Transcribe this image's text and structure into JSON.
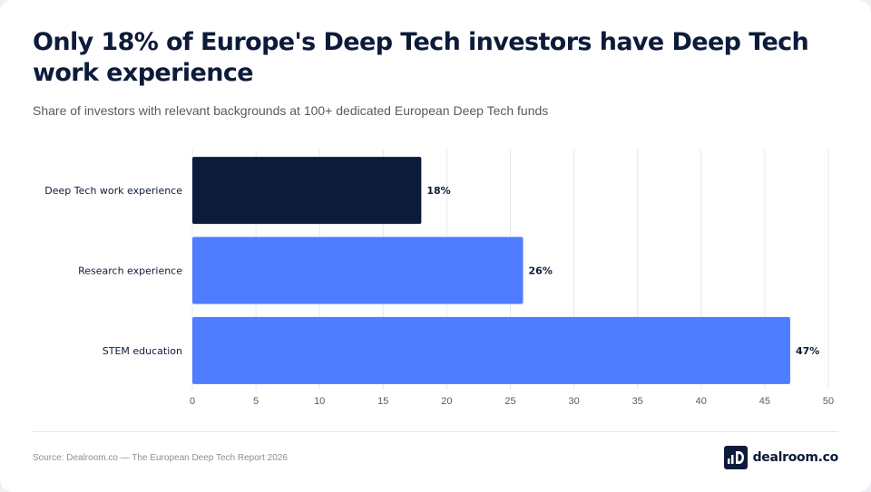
{
  "header": {
    "title": "Only 18% of Europe's Deep Tech investors have Deep Tech work experience",
    "subtitle": "Share of investors with relevant backgrounds at 100+ dedicated European Deep Tech funds"
  },
  "footer": {
    "source": "Source: Dealroom.co — The European Deep Tech Report 2026",
    "brand": "dealroom.co",
    "brand_icon": "dealroom-logo-icon"
  },
  "colors": {
    "highlight": "#0d1b3a",
    "default": "#4f7dff",
    "grid": "#e6e8ec",
    "text": "#0d1b3a"
  },
  "chart_data": {
    "type": "bar",
    "orientation": "horizontal",
    "categories": [
      "Deep Tech work experience",
      "Research experience",
      "STEM education"
    ],
    "values": [
      18,
      26,
      47
    ],
    "value_labels": [
      "18%",
      "26%",
      "47%"
    ],
    "highlight_index": 0,
    "xlim": [
      0,
      50
    ],
    "xticks": [
      0,
      5,
      10,
      15,
      20,
      25,
      30,
      35,
      40,
      45,
      50
    ],
    "grid": true,
    "legend": "none"
  }
}
